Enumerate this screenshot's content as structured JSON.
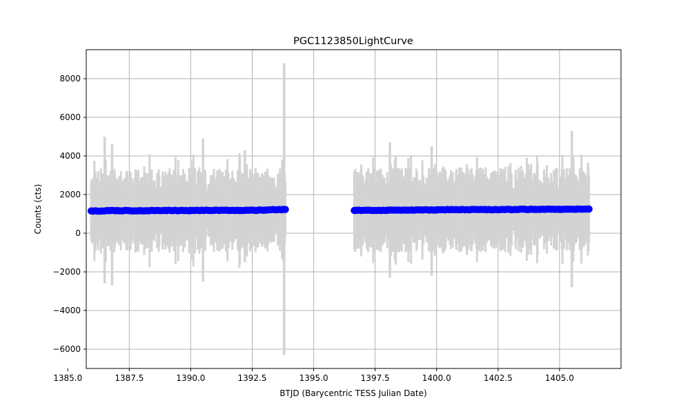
{
  "chart_data": {
    "type": "scatter",
    "title": "PGC1123850LightCurve",
    "xlabel": "BTJD (Barycentric TESS Julian Date)",
    "ylabel": "Counts (cts)",
    "xlim": [
      1385.75,
      1407.5
    ],
    "ylim": [
      -7000,
      9500
    ],
    "x_ticks": [
      1385.0,
      1387.5,
      1390.0,
      1392.5,
      1395.0,
      1397.5,
      1400.0,
      1402.5,
      1405.0
    ],
    "x_tick_labels": [
      "1385.0",
      "1387.5",
      "1390.0",
      "1392.5",
      "1395.0",
      "1397.5",
      "1400.0",
      "1402.5",
      "1405.0"
    ],
    "y_ticks": [
      -6000,
      -4000,
      -2000,
      0,
      2000,
      4000,
      6000,
      8000
    ],
    "y_tick_labels": [
      "−6000",
      "−4000",
      "−2000",
      "0",
      "2000",
      "4000",
      "6000",
      "8000"
    ],
    "grid": true,
    "segments": [
      {
        "x_start": 1385.95,
        "x_end": 1393.85
      },
      {
        "x_start": 1396.65,
        "x_end": 1406.2
      }
    ],
    "series": [
      {
        "type": "errorbar",
        "color": "#d3d3d3",
        "typical_range": [
          -1000,
          3600
        ],
        "notable_extremes": [
          {
            "x": 1386.5,
            "low": -2600,
            "high": 5000
          },
          {
            "x": 1386.8,
            "low": -2700,
            "high": 4600
          },
          {
            "x": 1390.5,
            "low": -2500,
            "high": 4900
          },
          {
            "x": 1392.2,
            "low": -1500,
            "high": 4300
          },
          {
            "x": 1393.8,
            "low": -6300,
            "high": 8800
          },
          {
            "x": 1398.1,
            "low": -2300,
            "high": 4700
          },
          {
            "x": 1399.8,
            "low": -2200,
            "high": 4500
          },
          {
            "x": 1405.5,
            "low": -2800,
            "high": 5300
          }
        ]
      },
      {
        "type": "scatter",
        "color": "#0000ff",
        "points": [
          {
            "x": 1386.0,
            "y": 1150
          },
          {
            "x": 1387.0,
            "y": 1170
          },
          {
            "x": 1388.0,
            "y": 1160
          },
          {
            "x": 1389.0,
            "y": 1180
          },
          {
            "x": 1390.0,
            "y": 1170
          },
          {
            "x": 1391.0,
            "y": 1190
          },
          {
            "x": 1392.0,
            "y": 1180
          },
          {
            "x": 1393.0,
            "y": 1200
          },
          {
            "x": 1393.85,
            "y": 1230
          },
          {
            "x": 1396.7,
            "y": 1180
          },
          {
            "x": 1398.0,
            "y": 1190
          },
          {
            "x": 1399.0,
            "y": 1200
          },
          {
            "x": 1400.0,
            "y": 1210
          },
          {
            "x": 1401.0,
            "y": 1220
          },
          {
            "x": 1402.0,
            "y": 1220
          },
          {
            "x": 1403.0,
            "y": 1230
          },
          {
            "x": 1404.0,
            "y": 1240
          },
          {
            "x": 1405.0,
            "y": 1240
          },
          {
            "x": 1406.2,
            "y": 1250
          }
        ]
      }
    ]
  }
}
